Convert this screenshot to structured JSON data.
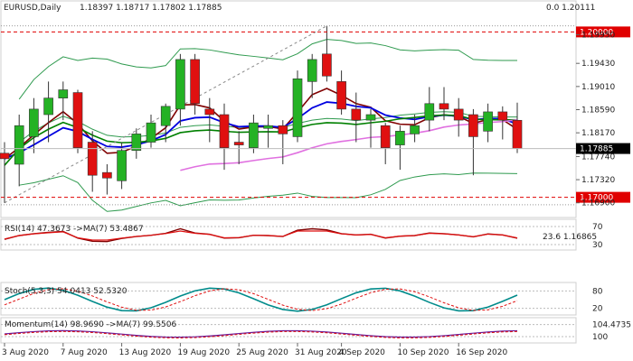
{
  "chart_data": {
    "type": "candlestick",
    "symbol": "EURUSD",
    "timeframe": "Daily",
    "header": {
      "title": "EURUSD,Daily",
      "ohlc": "1.18397 1.18717 1.17802 1.17885"
    },
    "price_axis": {
      "ylim": [
        1.1665,
        1.2035
      ],
      "ticks": [
        "1.19950",
        "1.19430",
        "1.19010",
        "1.18590",
        "1.18170",
        "1.17740",
        "1.17320",
        "1.16900"
      ],
      "tick_values": [
        1.1995,
        1.1943,
        1.1901,
        1.1859,
        1.1817,
        1.1774,
        1.1732,
        1.169
      ],
      "current_price": {
        "label": "1.17885",
        "value": 1.17885
      },
      "levels": [
        {
          "label": "1.20000",
          "value": 1.2,
          "color": "#e00000"
        },
        {
          "label": "1.17000",
          "value": 1.17,
          "color": "#e00000"
        }
      ],
      "fib": [
        {
          "label": "0.0 1.20111",
          "value": 1.20111
        },
        {
          "label": "23.6 1.16865",
          "value": 1.16865
        }
      ]
    },
    "x_labels": [
      "3 Aug 2020",
      "7 Aug 2020",
      "13 Aug 2020",
      "19 Aug 2020",
      "25 Aug 2020",
      "31 Aug 2020",
      "4 Sep 2020",
      "10 Sep 2020",
      "16 Sep 2020"
    ],
    "x_label_index": [
      0,
      4,
      8,
      12,
      16,
      20,
      23,
      27,
      31
    ],
    "candles": [
      {
        "o": 1.178,
        "h": 1.18,
        "l": 1.169,
        "c": 1.177
      },
      {
        "o": 1.176,
        "h": 1.185,
        "l": 1.172,
        "c": 1.183
      },
      {
        "o": 1.181,
        "h": 1.188,
        "l": 1.178,
        "c": 1.186
      },
      {
        "o": 1.185,
        "h": 1.191,
        "l": 1.18,
        "c": 1.188
      },
      {
        "o": 1.188,
        "h": 1.191,
        "l": 1.184,
        "c": 1.1895
      },
      {
        "o": 1.189,
        "h": 1.1895,
        "l": 1.178,
        "c": 1.179
      },
      {
        "o": 1.18,
        "h": 1.182,
        "l": 1.171,
        "c": 1.174
      },
      {
        "o": 1.1745,
        "h": 1.176,
        "l": 1.1705,
        "c": 1.1735
      },
      {
        "o": 1.173,
        "h": 1.18,
        "l": 1.1715,
        "c": 1.1785
      },
      {
        "o": 1.1785,
        "h": 1.1825,
        "l": 1.177,
        "c": 1.1815
      },
      {
        "o": 1.18,
        "h": 1.185,
        "l": 1.179,
        "c": 1.1835
      },
      {
        "o": 1.183,
        "h": 1.187,
        "l": 1.18,
        "c": 1.1865
      },
      {
        "o": 1.186,
        "h": 1.196,
        "l": 1.183,
        "c": 1.195
      },
      {
        "o": 1.195,
        "h": 1.196,
        "l": 1.185,
        "c": 1.187
      },
      {
        "o": 1.186,
        "h": 1.188,
        "l": 1.18,
        "c": 1.185
      },
      {
        "o": 1.185,
        "h": 1.187,
        "l": 1.175,
        "c": 1.179
      },
      {
        "o": 1.18,
        "h": 1.182,
        "l": 1.176,
        "c": 1.1795
      },
      {
        "o": 1.179,
        "h": 1.185,
        "l": 1.178,
        "c": 1.1835
      },
      {
        "o": 1.1825,
        "h": 1.185,
        "l": 1.179,
        "c": 1.183
      },
      {
        "o": 1.183,
        "h": 1.184,
        "l": 1.176,
        "c": 1.1815
      },
      {
        "o": 1.181,
        "h": 1.193,
        "l": 1.18,
        "c": 1.1915
      },
      {
        "o": 1.191,
        "h": 1.196,
        "l": 1.188,
        "c": 1.195
      },
      {
        "o": 1.196,
        "h": 1.2011,
        "l": 1.191,
        "c": 1.192
      },
      {
        "o": 1.191,
        "h": 1.193,
        "l": 1.185,
        "c": 1.186
      },
      {
        "o": 1.186,
        "h": 1.189,
        "l": 1.18,
        "c": 1.184
      },
      {
        "o": 1.184,
        "h": 1.186,
        "l": 1.179,
        "c": 1.185
      },
      {
        "o": 1.183,
        "h": 1.1835,
        "l": 1.176,
        "c": 1.179
      },
      {
        "o": 1.1795,
        "h": 1.183,
        "l": 1.175,
        "c": 1.182
      },
      {
        "o": 1.1815,
        "h": 1.185,
        "l": 1.18,
        "c": 1.183
      },
      {
        "o": 1.184,
        "h": 1.19,
        "l": 1.182,
        "c": 1.187
      },
      {
        "o": 1.187,
        "h": 1.19,
        "l": 1.184,
        "c": 1.186
      },
      {
        "o": 1.186,
        "h": 1.188,
        "l": 1.181,
        "c": 1.184
      },
      {
        "o": 1.185,
        "h": 1.186,
        "l": 1.174,
        "c": 1.181
      },
      {
        "o": 1.182,
        "h": 1.187,
        "l": 1.18,
        "c": 1.1855
      },
      {
        "o": 1.1855,
        "h": 1.1865,
        "l": 1.1805,
        "c": 1.184
      },
      {
        "o": 1.18397,
        "h": 1.18717,
        "l": 1.17802,
        "c": 1.17885
      }
    ],
    "indicators": {
      "rsi": {
        "label": "RSI(14) 47.3673 ->MA(7) 53.4867",
        "ylim": [
          20,
          80
        ],
        "ticks": [
          "70",
          "30"
        ],
        "tick_values": [
          70,
          30
        ]
      },
      "stoch": {
        "label": "Stoch(5,3,3) 54.0413 52.5320",
        "ylim": [
          0,
          100
        ],
        "ticks": [
          "80",
          "20"
        ],
        "tick_values": [
          80,
          20
        ]
      },
      "momentum": {
        "label": "Momentum(14) 98.9690 ->MA(7) 99.5506",
        "ylim": [
          98,
          106
        ],
        "ticks": [
          "104.4735",
          "100"
        ],
        "tick_values": [
          104.4735,
          100
        ]
      }
    },
    "colors": {
      "bull": "#24b224",
      "bear": "#e01010",
      "ma_fast": "#800000",
      "ma_mid": "#0000e0",
      "ma_slow": "#008000",
      "ma_long": "#e070e0",
      "bands": "#2e9a4e",
      "tick_label": "#222222"
    }
  }
}
